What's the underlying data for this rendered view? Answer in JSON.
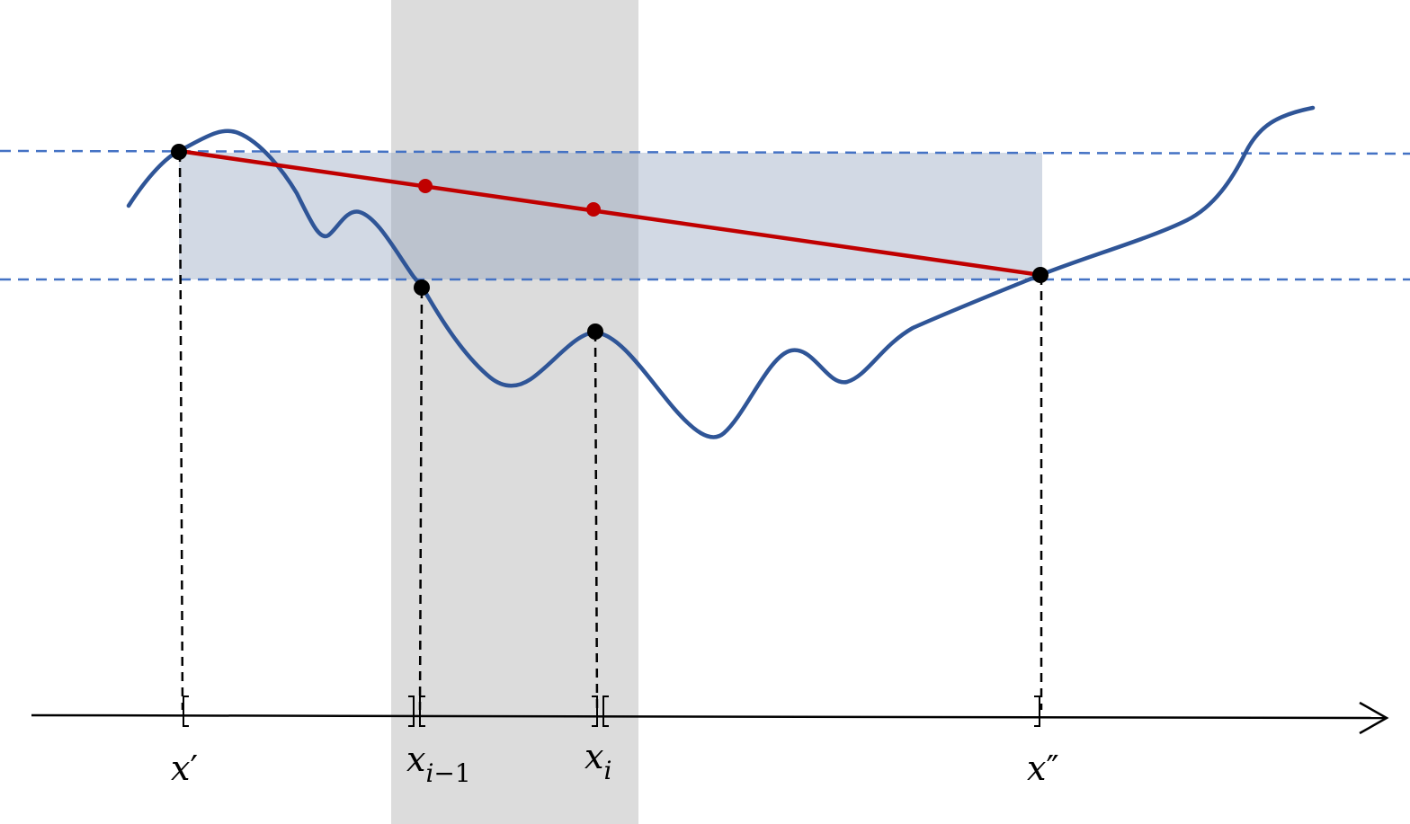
{
  "colors": {
    "curve": "#2f5597",
    "chord": "#c00000",
    "dashed_guides": "#4472c4",
    "band_fill": "#d9d9d9",
    "box_fill": "#b4c0d0",
    "points": "#000000",
    "axis": "#000000"
  },
  "labels": {
    "x_prime_base": "x",
    "x_prime_mark": "′",
    "x_im1_base": "x",
    "x_im1_sub_i": "i",
    "x_im1_sub_rest": "−1",
    "x_i_base": "x",
    "x_i_sub": "i",
    "x_dprime_base": "x",
    "x_dprime_mark": "″"
  }
}
